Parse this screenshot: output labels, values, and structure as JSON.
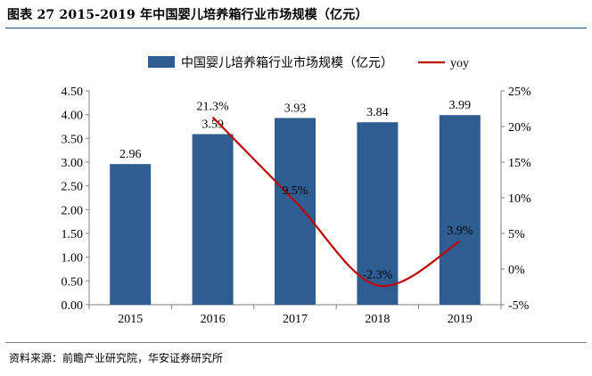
{
  "header": {
    "title": "图表 27 2015-2019 年中国婴儿培养箱行业市场规模（亿元）"
  },
  "footer": {
    "source": "资料来源：前瞻产业研究院，华安证券研究所"
  },
  "colors": {
    "bar": "#2e5d92",
    "line": "#c00000",
    "axis": "#7f7f7f",
    "rule": "#1f4e79"
  },
  "chart_data": {
    "type": "bar",
    "title": "",
    "categories": [
      "2015",
      "2016",
      "2017",
      "2018",
      "2019"
    ],
    "series": [
      {
        "name": "中国婴儿培养箱行业市场规模（亿元）",
        "type": "bar",
        "axis": "left",
        "values": [
          2.96,
          3.59,
          3.93,
          3.84,
          3.99
        ],
        "labels": [
          "2.96",
          "3.59",
          "3.93",
          "3.84",
          "3.99"
        ]
      },
      {
        "name": "yoy",
        "type": "line",
        "axis": "right",
        "x": [
          "2016",
          "2017",
          "2018",
          "2019"
        ],
        "values": [
          21.3,
          9.5,
          -2.3,
          3.9
        ],
        "labels": [
          "21.3%",
          "9.5%",
          "-2.3%",
          "3.9%"
        ]
      }
    ],
    "y_left": {
      "ylim": [
        0,
        4.5
      ],
      "ticks": [
        "0.00",
        "0.50",
        "1.00",
        "1.50",
        "2.00",
        "2.50",
        "3.00",
        "3.50",
        "4.00",
        "4.50"
      ]
    },
    "y_right": {
      "ylim": [
        -5,
        25
      ],
      "ticks": [
        "-5%",
        "0%",
        "5%",
        "10%",
        "15%",
        "20%",
        "25%"
      ]
    },
    "legend_position": "top-center",
    "grid": false
  }
}
